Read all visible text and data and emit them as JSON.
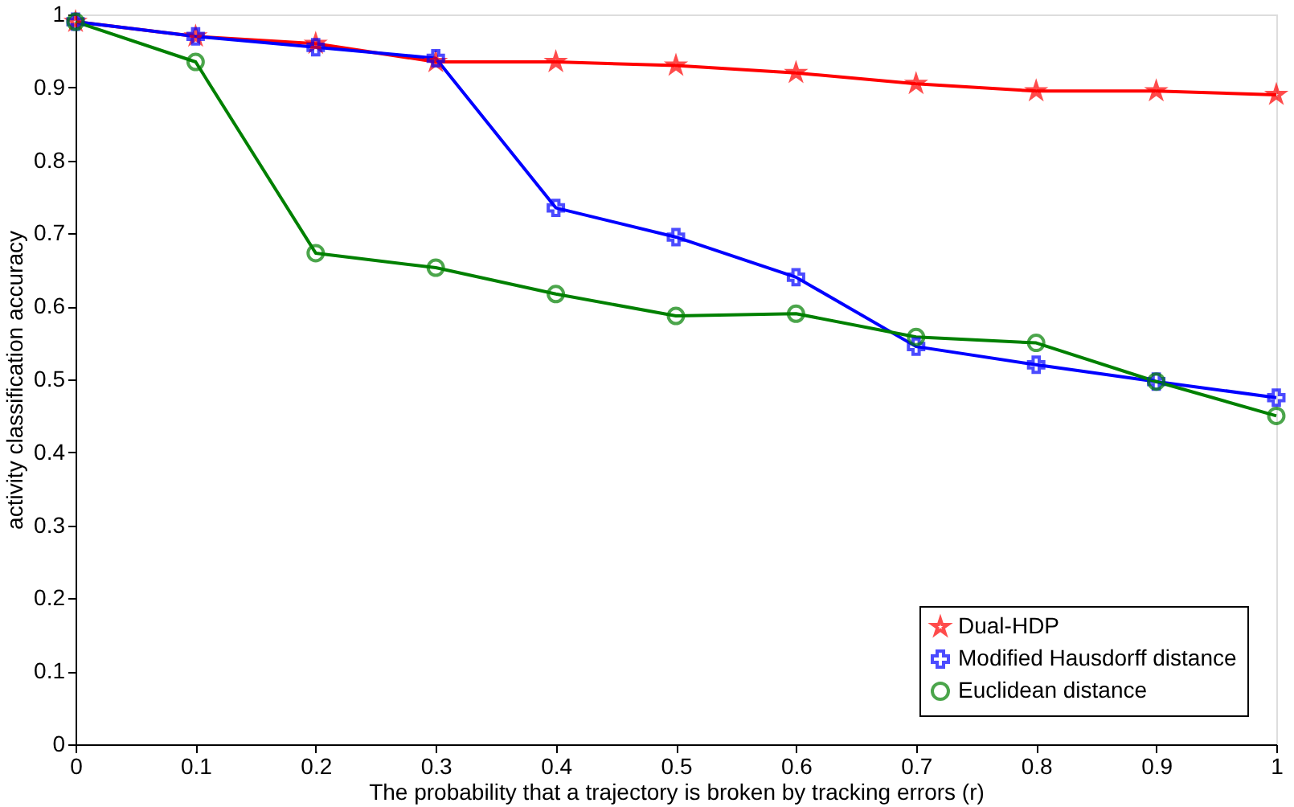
{
  "chart_data": {
    "type": "line",
    "xlabel": "The probability that a trajectory is broken by tracking errors (r)",
    "ylabel": "activity classification accuracy",
    "x": [
      0,
      0.1,
      0.2,
      0.3,
      0.4,
      0.5,
      0.6,
      0.7,
      0.8,
      0.9,
      1
    ],
    "series": [
      {
        "name": "Dual-HDP",
        "color": "#ff0000",
        "marker": "star",
        "values": [
          0.99,
          0.97,
          0.96,
          0.935,
          0.935,
          0.93,
          0.92,
          0.905,
          0.895,
          0.895,
          0.89
        ]
      },
      {
        "name": "Modified Hausdorff distance",
        "color": "#0000ff",
        "marker": "cross",
        "values": [
          0.99,
          0.97,
          0.955,
          0.94,
          0.735,
          0.695,
          0.64,
          0.545,
          0.52,
          0.497,
          0.475
        ]
      },
      {
        "name": "Euclidean distance",
        "color": "#008000",
        "marker": "circle",
        "values": [
          0.99,
          0.935,
          0.673,
          0.653,
          0.617,
          0.587,
          0.59,
          0.558,
          0.55,
          0.497,
          0.45
        ]
      }
    ],
    "xlim": [
      0,
      1
    ],
    "ylim": [
      0,
      1
    ],
    "xticks": [
      0,
      0.1,
      0.2,
      0.3,
      0.4,
      0.5,
      0.6,
      0.7,
      0.8,
      0.9,
      1
    ],
    "yticks": [
      0,
      0.1,
      0.2,
      0.3,
      0.4,
      0.5,
      0.6,
      0.7,
      0.8,
      0.9,
      1
    ],
    "grid": false,
    "legend": "bottom right",
    "line_style": "solid"
  }
}
